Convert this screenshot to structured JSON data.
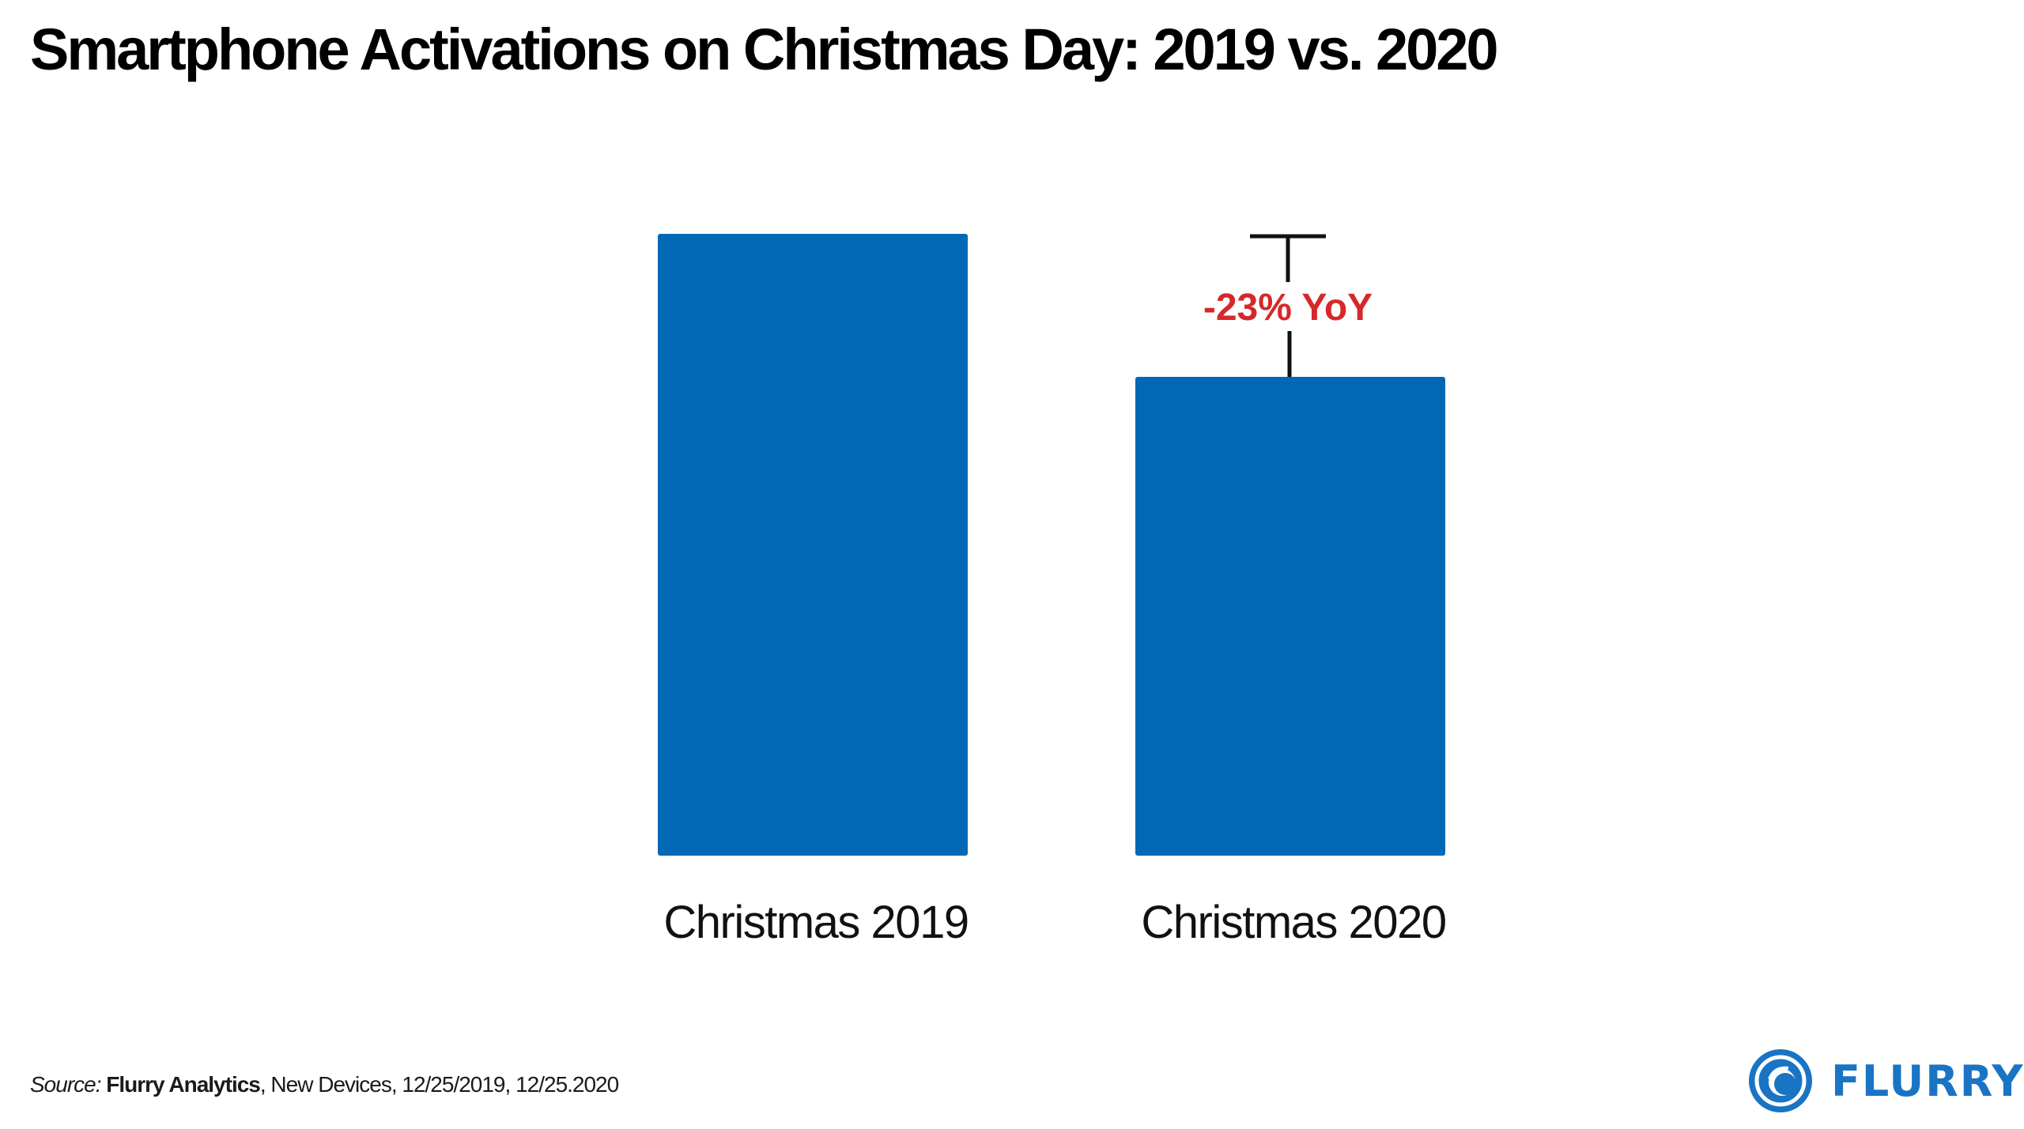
{
  "title": "Smartphone Activations on Christmas Day: 2019 vs. 2020",
  "colors": {
    "bar": "#0068b5",
    "annotation": "#d6282b",
    "bracket": "#111111",
    "logo": "#1a74c4"
  },
  "chart_data": {
    "type": "bar",
    "title": "Smartphone Activations on Christmas Day: 2019 vs. 2020",
    "categories": [
      "Christmas 2019",
      "Christmas 2020"
    ],
    "values": [
      100,
      77
    ],
    "value_note": "Indexed values (2019 = 100); no y-axis shown",
    "xlabel": "",
    "ylabel": "",
    "ylim": [
      0,
      100
    ],
    "grid": false,
    "legend": "none",
    "annotations": [
      {
        "text": "-23% YoY",
        "from_category": "Christmas 2019",
        "to_category": "Christmas 2020"
      }
    ]
  },
  "source": {
    "lead": "Source:",
    "org": "Flurry Analytics",
    "rest": ", New Devices, 12/25/2019, 12/25.2020"
  },
  "logo": {
    "icon": "flurry-swirl-icon",
    "text": "FLURRY"
  }
}
